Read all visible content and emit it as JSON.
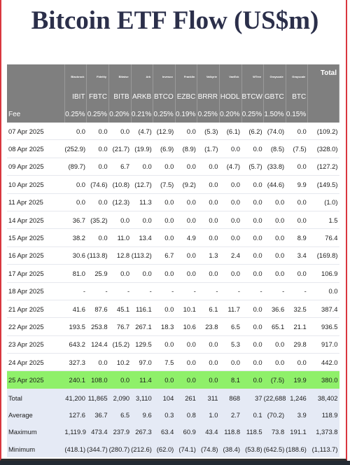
{
  "title": "Bitcoin ETF Flow (US$m)",
  "issuers": [
    "Blackrock",
    "Fidelity",
    "Bitwise",
    "Ark",
    "Invesco",
    "Franklin",
    "Valkyrie",
    "VanEck",
    "WTree",
    "Grayscale",
    "Grayscale"
  ],
  "total_label": "Total",
  "tickers": [
    "IBIT",
    "FBTC",
    "BITB",
    "ARKB",
    "BTCO",
    "EZBC",
    "BRRR",
    "HODL",
    "BTCW",
    "GBTC",
    "BTC"
  ],
  "fee_label": "Fee",
  "fees": [
    "0.25%",
    "0.25%",
    "0.20%",
    "0.21%",
    "0.25%",
    "0.19%",
    "0.25%",
    "0.20%",
    "0.25%",
    "1.50%",
    "0.15%"
  ],
  "rows": [
    {
      "date": "07 Apr 2025",
      "values": [
        "0.0",
        "0.0",
        "0.0",
        "(4.7)",
        "(12.9)",
        "0.0",
        "(5.3)",
        "(6.1)",
        "(6.2)",
        "(74.0)",
        "0.0"
      ],
      "total": "(109.2)"
    },
    {
      "date": "08 Apr 2025",
      "values": [
        "(252.9)",
        "0.0",
        "(21.7)",
        "(19.9)",
        "(6.9)",
        "(8.9)",
        "(1.7)",
        "0.0",
        "0.0",
        "(8.5)",
        "(7.5)"
      ],
      "total": "(328.0)"
    },
    {
      "date": "09 Apr 2025",
      "values": [
        "(89.7)",
        "0.0",
        "6.7",
        "0.0",
        "0.0",
        "0.0",
        "0.0",
        "(4.7)",
        "(5.7)",
        "(33.8)",
        "0.0"
      ],
      "total": "(127.2)"
    },
    {
      "date": "10 Apr 2025",
      "values": [
        "0.0",
        "(74.6)",
        "(10.8)",
        "(12.7)",
        "(7.5)",
        "(9.2)",
        "0.0",
        "0.0",
        "0.0",
        "(44.6)",
        "9.9"
      ],
      "total": "(149.5)"
    },
    {
      "date": "11 Apr 2025",
      "values": [
        "0.0",
        "0.0",
        "(12.3)",
        "11.3",
        "0.0",
        "0.0",
        "0.0",
        "0.0",
        "0.0",
        "0.0",
        "0.0"
      ],
      "total": "(1.0)"
    },
    {
      "date": "14 Apr 2025",
      "values": [
        "36.7",
        "(35.2)",
        "0.0",
        "0.0",
        "0.0",
        "0.0",
        "0.0",
        "0.0",
        "0.0",
        "0.0",
        "0.0"
      ],
      "total": "1.5"
    },
    {
      "date": "15 Apr 2025",
      "values": [
        "38.2",
        "0.0",
        "11.0",
        "13.4",
        "0.0",
        "4.9",
        "0.0",
        "0.0",
        "0.0",
        "0.0",
        "8.9"
      ],
      "total": "76.4"
    },
    {
      "date": "16 Apr 2025",
      "values": [
        "30.6",
        "(113.8)",
        "12.8",
        "(113.2)",
        "6.7",
        "0.0",
        "1.3",
        "2.4",
        "0.0",
        "0.0",
        "3.4"
      ],
      "total": "(169.8)"
    },
    {
      "date": "17 Apr 2025",
      "values": [
        "81.0",
        "25.9",
        "0.0",
        "0.0",
        "0.0",
        "0.0",
        "0.0",
        "0.0",
        "0.0",
        "0.0",
        "0.0"
      ],
      "total": "106.9"
    },
    {
      "date": "18 Apr 2025",
      "values": [
        "-",
        "-",
        "-",
        "-",
        "-",
        "-",
        "-",
        "-",
        "-",
        "-",
        "-"
      ],
      "total": "0.0"
    },
    {
      "date": "21 Apr 2025",
      "values": [
        "41.6",
        "87.6",
        "45.1",
        "116.1",
        "0.0",
        "10.1",
        "6.1",
        "11.7",
        "0.0",
        "36.6",
        "32.5"
      ],
      "total": "387.4"
    },
    {
      "date": "22 Apr 2025",
      "values": [
        "193.5",
        "253.8",
        "76.7",
        "267.1",
        "18.3",
        "10.6",
        "23.8",
        "6.5",
        "0.0",
        "65.1",
        "21.1"
      ],
      "total": "936.5"
    },
    {
      "date": "23 Apr 2025",
      "values": [
        "643.2",
        "124.4",
        "(15.2)",
        "129.5",
        "0.0",
        "0.0",
        "0.0",
        "5.3",
        "0.0",
        "0.0",
        "29.8"
      ],
      "total": "917.0"
    },
    {
      "date": "24 Apr 2025",
      "values": [
        "327.3",
        "0.0",
        "10.2",
        "97.0",
        "7.5",
        "0.0",
        "0.0",
        "0.0",
        "0.0",
        "0.0",
        "0.0"
      ],
      "total": "442.0"
    },
    {
      "date": "25 Apr 2025",
      "values": [
        "240.1",
        "108.0",
        "0.0",
        "11.4",
        "0.0",
        "0.0",
        "0.0",
        "8.1",
        "0.0",
        "(7.5)",
        "19.9"
      ],
      "total": "380.0",
      "highlight": true
    }
  ],
  "summary": [
    {
      "label": "Total",
      "values": [
        "41,200",
        "11,865",
        "2,090",
        "3,110",
        "104",
        "261",
        "311",
        "868",
        "37",
        "(22,688)",
        "1,246"
      ],
      "total": "38,402"
    },
    {
      "label": "Average",
      "values": [
        "127.6",
        "36.7",
        "6.5",
        "9.6",
        "0.3",
        "0.8",
        "1.0",
        "2.7",
        "0.1",
        "(70.2)",
        "3.9"
      ],
      "total": "118.9"
    },
    {
      "label": "Maximum",
      "values": [
        "1,119.9",
        "473.4",
        "237.9",
        "267.3",
        "63.4",
        "60.9",
        "43.4",
        "118.8",
        "118.5",
        "73.8",
        "191.1"
      ],
      "total": "1,373.8"
    },
    {
      "label": "Minimum",
      "values": [
        "(418.1)",
        "(344.7)",
        "(280.7)",
        "(212.6)",
        "(62.0)",
        "(74.1)",
        "(74.8)",
        "(38.4)",
        "(53.8)",
        "(642.5)",
        "(188.6)"
      ],
      "total": "(1,113.7)"
    }
  ],
  "colors": {
    "header_bg": "#7f7f7f",
    "negative": "#e3262e",
    "highlight_row": "#8ff06a",
    "summary_bg": "#e5eaf5",
    "title": "#2b2f4a"
  }
}
